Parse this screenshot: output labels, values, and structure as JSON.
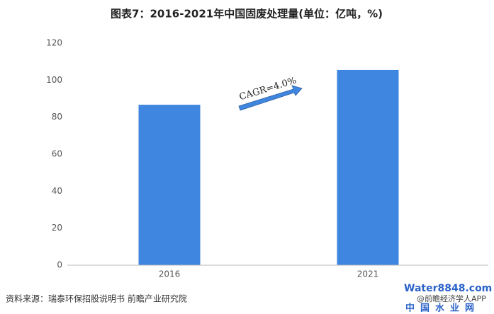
{
  "chart_data": {
    "type": "bar",
    "title": "图表7：2016-2021年中国固废处理量(单位：亿吨，%)",
    "categories": [
      "2016",
      "2021"
    ],
    "values": [
      86.7,
      105.5
    ],
    "color": "#3f86e0",
    "ylim": [
      0,
      120
    ],
    "yticks": [
      0,
      20,
      40,
      60,
      80,
      100,
      120
    ],
    "annotation": "CAGR=4.0%",
    "source": "资料来源：瑞泰环保招股说明书 前瞻产业研究院",
    "watermarks": [
      "Water8848.com",
      "@前瞻经济学人APP",
      "中国水业网"
    ]
  }
}
